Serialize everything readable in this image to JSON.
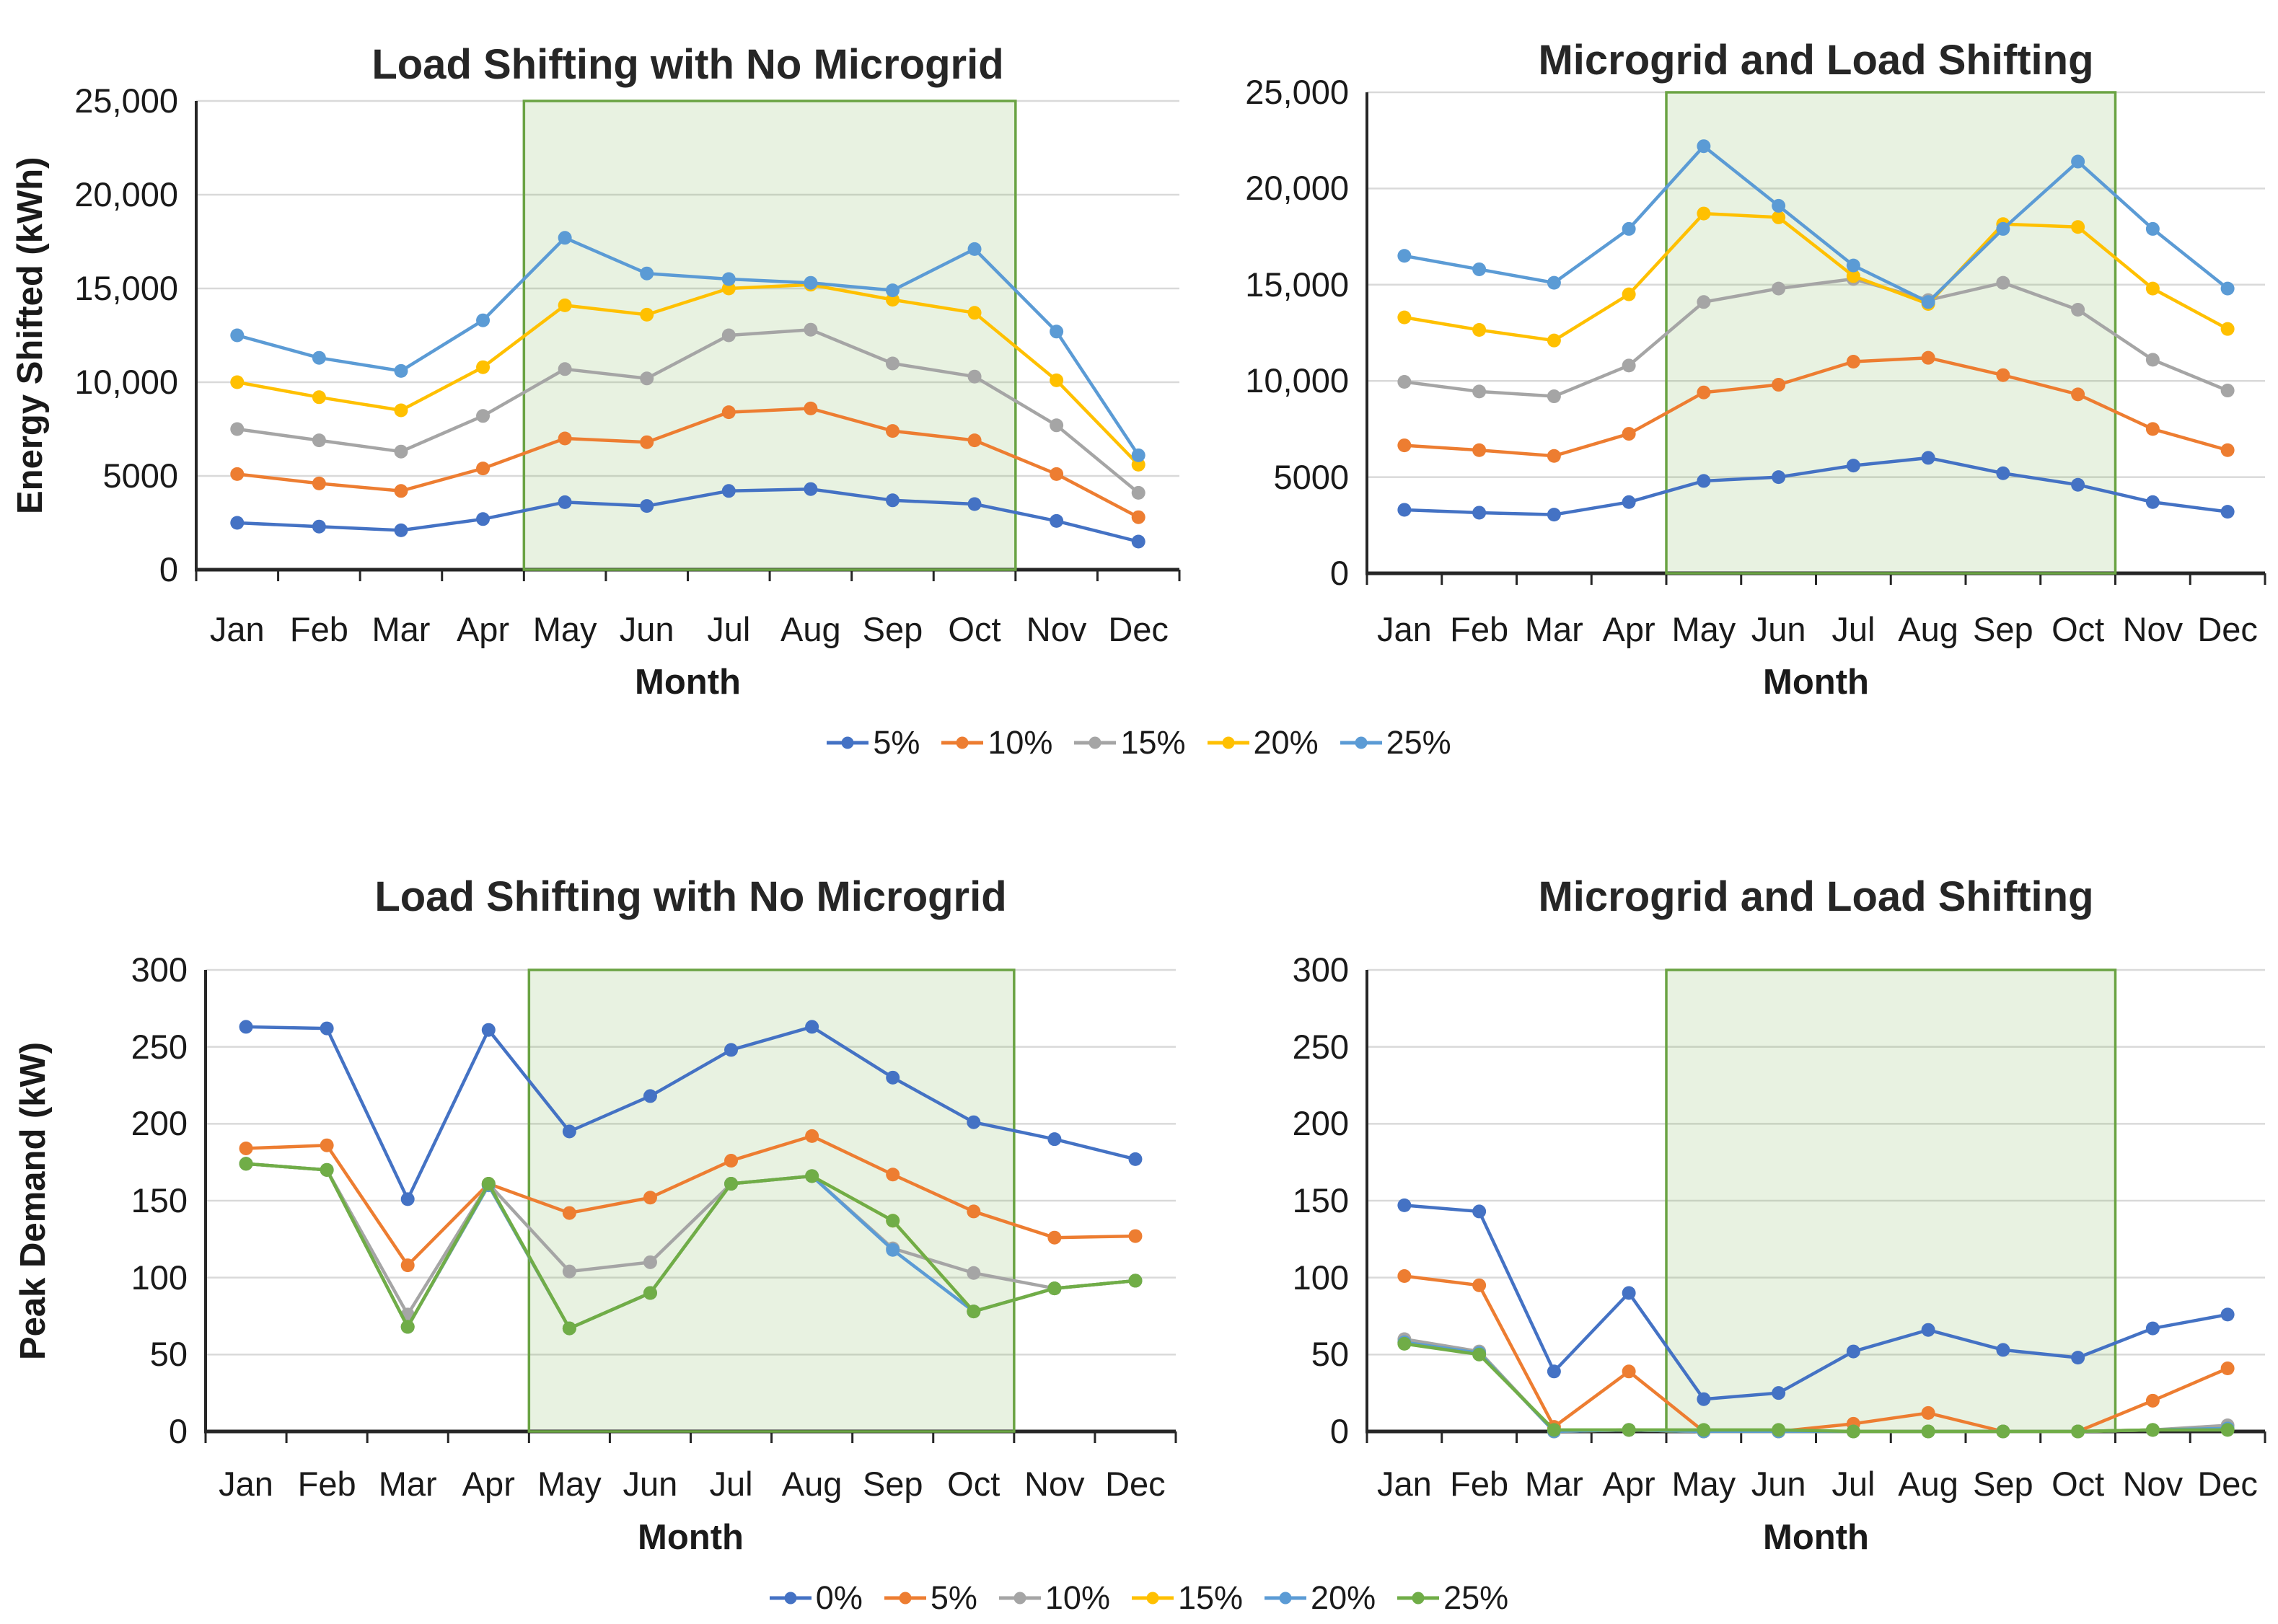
{
  "figure": {
    "background": "#ffffff",
    "grid_color": "#d9d9d9",
    "axis_color": "#262626",
    "highlight_fill": "#70ad47",
    "highlight_border": "#6aa343"
  },
  "months_axis_label": "Month",
  "legends": [
    {
      "id": "energy",
      "items": [
        {
          "label": "5%",
          "color": "#4472c4"
        },
        {
          "label": "10%",
          "color": "#ed7d31"
        },
        {
          "label": "15%",
          "color": "#a5a5a5"
        },
        {
          "label": "20%",
          "color": "#ffc000"
        },
        {
          "label": "25%",
          "color": "#5b9bd5"
        }
      ]
    },
    {
      "id": "demand",
      "items": [
        {
          "label": "0%",
          "color": "#4472c4"
        },
        {
          "label": "5%",
          "color": "#ed7d31"
        },
        {
          "label": "10%",
          "color": "#a5a5a5"
        },
        {
          "label": "15%",
          "color": "#ffc000"
        },
        {
          "label": "20%",
          "color": "#5b9bd5"
        },
        {
          "label": "25%",
          "color": "#70ad47"
        }
      ]
    }
  ],
  "chart_data": [
    {
      "id": "energy-no-microgrid",
      "type": "line",
      "title": "Load Shifting with No Microgrid",
      "xlabel": "Month",
      "ylabel": "Energy Shifted (kWh)",
      "categories": [
        "Jan",
        "Feb",
        "Mar",
        "Apr",
        "May",
        "Jun",
        "Jul",
        "Aug",
        "Sep",
        "Oct",
        "Nov",
        "Dec"
      ],
      "ylim": [
        0,
        25000
      ],
      "ytick_labels": [
        "0",
        "5000",
        "10,000",
        "15,000",
        "20,000",
        "25,000"
      ],
      "grid": true,
      "legend_position": "below-top-row",
      "shaded_region": {
        "from": "May",
        "to": "Oct",
        "fill_opacity": 0.16
      },
      "series": [
        {
          "name": "5%",
          "color": "#4472c4",
          "values": [
            2500,
            2300,
            2100,
            2700,
            3600,
            3400,
            4200,
            4300,
            3700,
            3500,
            2600,
            1500
          ]
        },
        {
          "name": "10%",
          "color": "#ed7d31",
          "values": [
            5100,
            4600,
            4200,
            5400,
            7000,
            6800,
            8400,
            8600,
            7400,
            6900,
            5100,
            2800
          ]
        },
        {
          "name": "15%",
          "color": "#a5a5a5",
          "values": [
            7500,
            6900,
            6300,
            8200,
            10700,
            10200,
            12500,
            12800,
            11000,
            10300,
            7700,
            4100
          ]
        },
        {
          "name": "20%",
          "color": "#ffc000",
          "values": [
            10000,
            9200,
            8500,
            10800,
            14100,
            13600,
            15000,
            15200,
            14400,
            13700,
            10100,
            5600
          ]
        },
        {
          "name": "25%",
          "color": "#5b9bd5",
          "values": [
            12500,
            11300,
            10600,
            13300,
            17700,
            15800,
            15500,
            15300,
            14900,
            17100,
            12700,
            6100
          ]
        }
      ]
    },
    {
      "id": "energy-microgrid",
      "type": "line",
      "title": "Microgrid and Load Shifting",
      "xlabel": "Month",
      "ylabel": "",
      "categories": [
        "Jan",
        "Feb",
        "Mar",
        "Apr",
        "May",
        "Jun",
        "Jul",
        "Aug",
        "Sep",
        "Oct",
        "Nov",
        "Dec"
      ],
      "ylim": [
        0,
        25000
      ],
      "ytick_labels": [
        "0",
        "5000",
        "10,000",
        "15,000",
        "20,000",
        "25,000"
      ],
      "grid": true,
      "legend_position": "below-top-row",
      "shaded_region": {
        "from": "May",
        "to": "Oct",
        "fill_opacity": 0.16
      },
      "series": [
        {
          "name": "5%",
          "color": "#4472c4",
          "values": [
            3300,
            3150,
            3050,
            3700,
            4800,
            5000,
            5600,
            6000,
            5200,
            4600,
            3700,
            3200
          ]
        },
        {
          "name": "10%",
          "color": "#ed7d31",
          "values": [
            6650,
            6400,
            6100,
            7250,
            9400,
            9800,
            11000,
            11200,
            10300,
            9300,
            7500,
            6400
          ]
        },
        {
          "name": "15%",
          "color": "#a5a5a5",
          "values": [
            9950,
            9450,
            9200,
            10800,
            14100,
            14800,
            15300,
            14200,
            15100,
            13700,
            11100,
            9500
          ]
        },
        {
          "name": "20%",
          "color": "#ffc000",
          "values": [
            13300,
            12650,
            12100,
            14500,
            18700,
            18500,
            15450,
            14000,
            18150,
            18000,
            14800,
            12700
          ]
        },
        {
          "name": "25%",
          "color": "#5b9bd5",
          "values": [
            16500,
            15800,
            15100,
            17900,
            22200,
            19100,
            16000,
            14100,
            17900,
            21400,
            17900,
            14800
          ]
        }
      ]
    },
    {
      "id": "demand-no-microgrid",
      "type": "line",
      "title": "Load Shifting with No Microgrid",
      "xlabel": "Month",
      "ylabel": "Peak Demand (kW)",
      "categories": [
        "Jan",
        "Feb",
        "Mar",
        "Apr",
        "May",
        "Jun",
        "Jul",
        "Aug",
        "Sep",
        "Oct",
        "Nov",
        "Dec"
      ],
      "ylim": [
        0,
        300
      ],
      "ytick_labels": [
        "0",
        "50",
        "100",
        "150",
        "200",
        "250",
        "300"
      ],
      "grid": true,
      "legend_position": "below-bottom-row",
      "shaded_region": {
        "from": "May",
        "to": "Oct",
        "fill_opacity": 0.16
      },
      "series": [
        {
          "name": "0%",
          "color": "#4472c4",
          "values": [
            263,
            262,
            151,
            261,
            195,
            218,
            248,
            263,
            230,
            201,
            190,
            177
          ]
        },
        {
          "name": "5%",
          "color": "#ed7d31",
          "values": [
            184,
            186,
            108,
            161,
            142,
            152,
            176,
            192,
            167,
            143,
            126,
            127
          ]
        },
        {
          "name": "10%",
          "color": "#a5a5a5",
          "values": [
            174,
            170,
            76,
            161,
            104,
            110,
            161,
            166,
            119,
            103,
            93,
            98
          ]
        },
        {
          "name": "15%",
          "color": "#ffc000",
          "values": [
            174,
            170,
            68,
            160,
            67,
            90,
            161,
            166,
            137,
            78,
            93,
            98
          ]
        },
        {
          "name": "20%",
          "color": "#5b9bd5",
          "values": [
            174,
            170,
            68,
            160,
            67,
            90,
            161,
            166,
            118,
            78,
            93,
            98
          ]
        },
        {
          "name": "25%",
          "color": "#70ad47",
          "values": [
            174,
            170,
            68,
            161,
            67,
            90,
            161,
            166,
            137,
            78,
            93,
            98
          ]
        }
      ]
    },
    {
      "id": "demand-microgrid",
      "type": "line",
      "title": "Microgrid and Load Shifting",
      "xlabel": "Month",
      "ylabel": "",
      "categories": [
        "Jan",
        "Feb",
        "Mar",
        "Apr",
        "May",
        "Jun",
        "Jul",
        "Aug",
        "Sep",
        "Oct",
        "Nov",
        "Dec"
      ],
      "ylim": [
        0,
        300
      ],
      "ytick_labels": [
        "0",
        "50",
        "100",
        "150",
        "200",
        "250",
        "300"
      ],
      "grid": true,
      "legend_position": "below-bottom-row",
      "shaded_region": {
        "from": "May",
        "to": "Oct",
        "fill_opacity": 0.16
      },
      "series": [
        {
          "name": "0%",
          "color": "#4472c4",
          "values": [
            147,
            143,
            39,
            90,
            21,
            25,
            52,
            66,
            53,
            48,
            67,
            76
          ]
        },
        {
          "name": "5%",
          "color": "#ed7d31",
          "values": [
            101,
            95,
            3,
            39,
            0,
            0,
            5,
            12,
            0,
            0,
            20,
            41
          ]
        },
        {
          "name": "10%",
          "color": "#a5a5a5",
          "values": [
            60,
            52,
            0,
            1,
            0,
            0,
            0,
            0,
            0,
            0,
            1,
            4
          ]
        },
        {
          "name": "15%",
          "color": "#ffc000",
          "values": [
            58,
            51,
            0,
            1,
            0,
            0,
            0,
            0,
            0,
            0,
            1,
            2
          ]
        },
        {
          "name": "20%",
          "color": "#5b9bd5",
          "values": [
            58,
            51,
            0,
            1,
            0,
            0,
            0,
            0,
            0,
            0,
            1,
            2
          ]
        },
        {
          "name": "25%",
          "color": "#70ad47",
          "values": [
            57,
            50,
            1,
            1,
            1,
            1,
            0,
            0,
            0,
            0,
            1,
            1
          ]
        }
      ]
    }
  ]
}
